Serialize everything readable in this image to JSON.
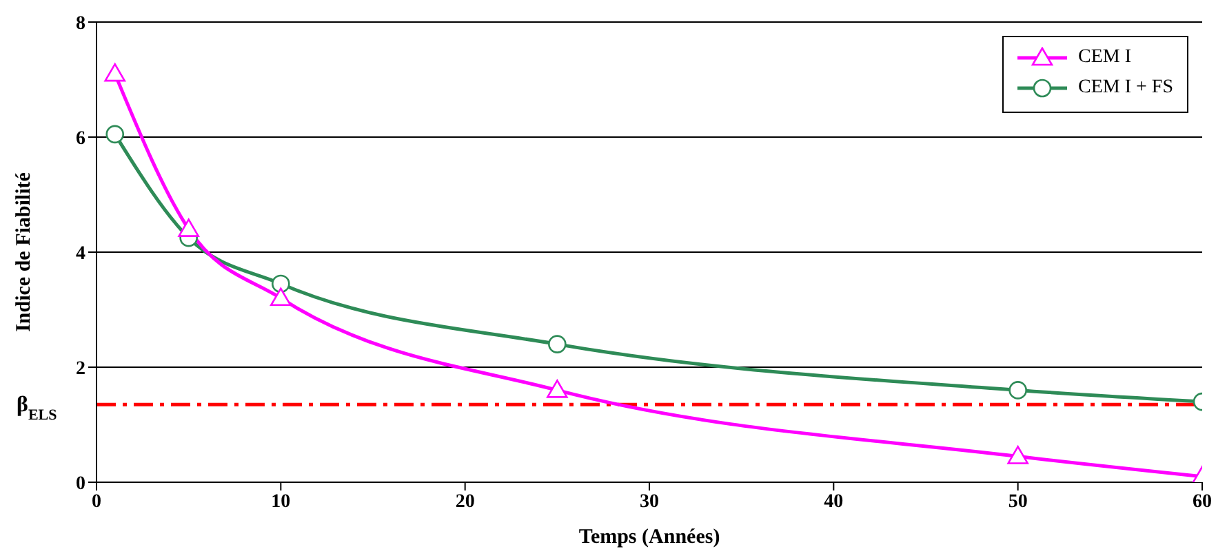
{
  "chart_data": {
    "type": "line",
    "xlabel": "Temps (Années)",
    "ylabel": "Indice de Fiabilité",
    "x": [
      1,
      5,
      10,
      25,
      50,
      60
    ],
    "series": [
      {
        "name": "CEM I",
        "color": "#ff00ff",
        "marker": "triangle",
        "values": [
          7.1,
          4.4,
          3.2,
          1.6,
          0.45,
          0.1
        ]
      },
      {
        "name": "CEM I + FS",
        "color": "#2e8b57",
        "marker": "circle",
        "values": [
          6.05,
          4.25,
          3.45,
          2.4,
          1.6,
          1.4
        ]
      }
    ],
    "xlim": [
      0,
      60
    ],
    "xticks": [
      0,
      10,
      20,
      30,
      40,
      50,
      60
    ],
    "ylim": [
      0,
      8
    ],
    "yticks": [
      0,
      2,
      4,
      6,
      8
    ],
    "grid": "y",
    "legend": "top right",
    "ref_lines": [
      {
        "axis": "y",
        "value": 1.35,
        "label": "β$_{ELS}$",
        "color": "#ff0000",
        "line_style": "dashed"
      }
    ]
  }
}
